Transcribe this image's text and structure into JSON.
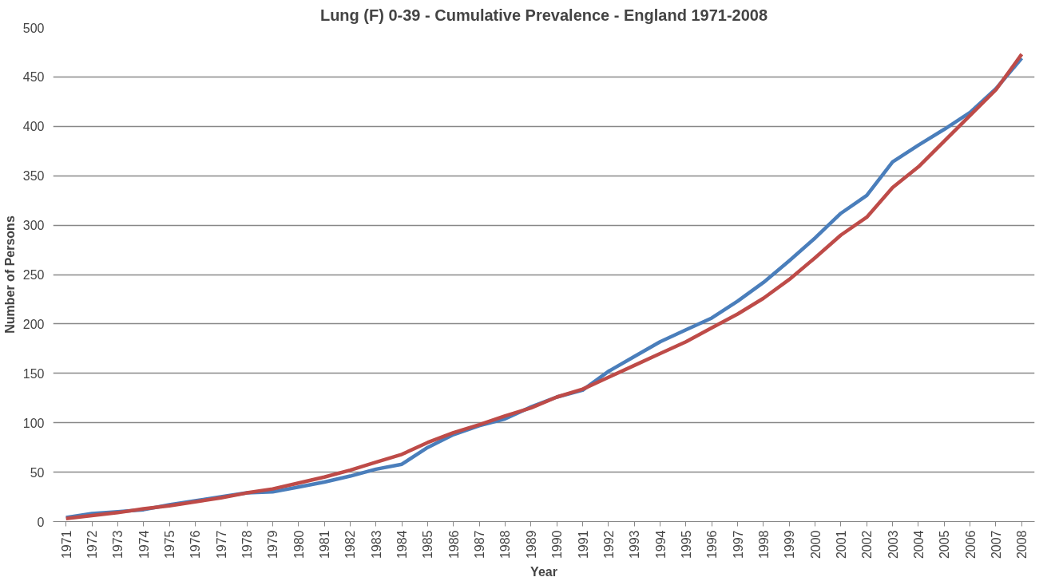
{
  "chart_data": {
    "type": "line",
    "title": "Lung (F) 0-39 - Cumulative Prevalence - England 1971-2008",
    "xlabel": "Year",
    "ylabel": "Number of Persons",
    "categories": [
      "1971",
      "1972",
      "1973",
      "1974",
      "1975",
      "1976",
      "1977",
      "1978",
      "1979",
      "1980",
      "1981",
      "1982",
      "1983",
      "1984",
      "1985",
      "1986",
      "1987",
      "1988",
      "1989",
      "1990",
      "1991",
      "1992",
      "1993",
      "1994",
      "1995",
      "1996",
      "1997",
      "1998",
      "1999",
      "2000",
      "2001",
      "2002",
      "2003",
      "2004",
      "2005",
      "2006",
      "2007",
      "2008"
    ],
    "series": [
      {
        "color": "#4a7ebb",
        "values": [
          4,
          8,
          10,
          12,
          17,
          21,
          25,
          29,
          30,
          35,
          40,
          46,
          53,
          58,
          75,
          88,
          97,
          104,
          116,
          126,
          133,
          152,
          167,
          182,
          194,
          206,
          223,
          242,
          264,
          287,
          312,
          330,
          364,
          381,
          397,
          414,
          438,
          469
        ]
      },
      {
        "color": "#be4b48",
        "values": [
          3,
          6,
          9,
          13,
          16,
          20,
          24,
          29,
          33,
          39,
          45,
          52,
          60,
          68,
          80,
          90,
          98,
          107,
          115,
          126,
          134,
          146,
          158,
          170,
          182,
          196,
          210,
          226,
          245,
          267,
          290,
          308,
          338,
          359,
          385,
          411,
          437,
          473
        ]
      }
    ],
    "ylim": [
      0,
      500
    ],
    "yticks": [
      0,
      50,
      100,
      150,
      200,
      250,
      300,
      350,
      400,
      450,
      500
    ],
    "grid": "y",
    "marker": "none",
    "line_style": "solid"
  }
}
